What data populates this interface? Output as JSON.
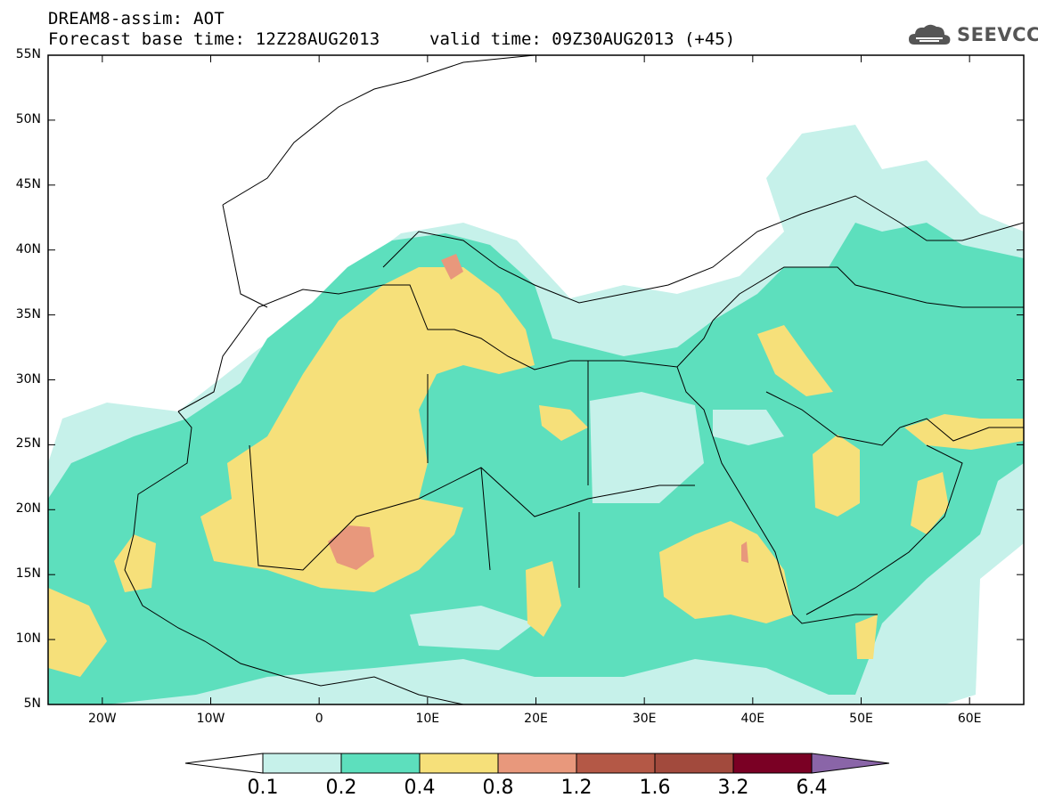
{
  "header": {
    "title": "DREAM8-assim: AOT",
    "subtitle": "Forecast base time: 12Z28AUG2013",
    "valid_time": "valid time: 09Z30AUG2013 (+45)"
  },
  "logo": {
    "text": "SEEVCCC"
  },
  "map": {
    "lat_labels": [
      "55N",
      "50N",
      "45N",
      "40N",
      "35N",
      "30N",
      "25N",
      "20N",
      "15N",
      "10N",
      "5N"
    ],
    "lon_labels": [
      "20W",
      "10W",
      "0",
      "10E",
      "20E",
      "30E",
      "40E",
      "50E",
      "60E"
    ],
    "lat_range": [
      5,
      55
    ],
    "lon_range": [
      -25,
      65
    ],
    "colors": {
      "ocean_bg": "#ffffff",
      "c01": "#c6f1ea",
      "c02": "#5ddfbd",
      "c04": "#f6e07a",
      "c08": "#e8987c",
      "c12": "#b45846",
      "border": "#000000"
    }
  },
  "colorbar": {
    "levels": [
      "0.1",
      "0.2",
      "0.4",
      "0.8",
      "1.2",
      "1.6",
      "3.2",
      "6.4"
    ],
    "colors": [
      "#ffffff",
      "#c6f1ea",
      "#5ddfbd",
      "#f6e07a",
      "#e8987c",
      "#b45846",
      "#a24a3d",
      "#7a0024",
      "#3b2a18",
      "#8a65a8"
    ]
  }
}
